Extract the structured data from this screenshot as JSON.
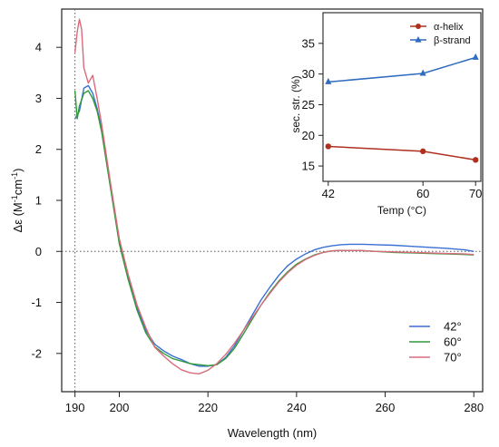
{
  "chart_data": [
    {
      "type": "line",
      "xlabel": "Wavelength (nm)",
      "ylabel_main": "Δε (M",
      "ylabel_sup1": "-1",
      "ylabel_mid": "cm",
      "ylabel_sup2": "-1",
      "ylabel_end": ")",
      "xlim": [
        187,
        282
      ],
      "ylim": [
        -2.75,
        4.75
      ],
      "xticks": [
        190,
        200,
        220,
        240,
        260,
        280
      ],
      "xtick_labels": [
        "190",
        "200",
        "220",
        "240",
        "260",
        "280"
      ],
      "yticks": [
        -2,
        -1,
        0,
        1,
        2,
        3,
        4
      ],
      "ytick_labels": [
        "-2",
        "-1",
        "0",
        "1",
        "2",
        "3",
        "4"
      ],
      "reference_lines": {
        "y": 0,
        "x": 190
      },
      "legend_position": "bottom-right",
      "series": [
        {
          "name": "42°",
          "color": "#3b6fd4",
          "points": [
            [
              190,
              2.6
            ],
            [
              191,
              2.75
            ],
            [
              192,
              3.2
            ],
            [
              193,
              3.25
            ],
            [
              194,
              3.1
            ],
            [
              195,
              2.8
            ],
            [
              196,
              2.4
            ],
            [
              198,
              1.3
            ],
            [
              200,
              0.2
            ],
            [
              202,
              -0.5
            ],
            [
              204,
              -1.1
            ],
            [
              206,
              -1.55
            ],
            [
              208,
              -1.82
            ],
            [
              210,
              -1.95
            ],
            [
              212,
              -2.05
            ],
            [
              214,
              -2.12
            ],
            [
              216,
              -2.2
            ],
            [
              218,
              -2.25
            ],
            [
              220,
              -2.25
            ],
            [
              222,
              -2.22
            ],
            [
              224,
              -2.08
            ],
            [
              226,
              -1.85
            ],
            [
              228,
              -1.55
            ],
            [
              230,
              -1.25
            ],
            [
              232,
              -0.95
            ],
            [
              234,
              -0.7
            ],
            [
              236,
              -0.47
            ],
            [
              238,
              -0.28
            ],
            [
              240,
              -0.15
            ],
            [
              242,
              -0.05
            ],
            [
              244,
              0.03
            ],
            [
              246,
              0.08
            ],
            [
              248,
              0.11
            ],
            [
              250,
              0.13
            ],
            [
              252,
              0.14
            ],
            [
              255,
              0.14
            ],
            [
              258,
              0.13
            ],
            [
              262,
              0.12
            ],
            [
              266,
              0.1
            ],
            [
              270,
              0.08
            ],
            [
              274,
              0.06
            ],
            [
              278,
              0.03
            ],
            [
              280,
              0.0
            ]
          ]
        },
        {
          "name": "60°",
          "color": "#2e9a3a",
          "points": [
            [
              190,
              3.15
            ],
            [
              190.5,
              2.6
            ],
            [
              191,
              2.85
            ],
            [
              192,
              3.1
            ],
            [
              193,
              3.15
            ],
            [
              194,
              3.0
            ],
            [
              195,
              2.75
            ],
            [
              196,
              2.35
            ],
            [
              198,
              1.25
            ],
            [
              200,
              0.15
            ],
            [
              202,
              -0.55
            ],
            [
              204,
              -1.15
            ],
            [
              206,
              -1.6
            ],
            [
              208,
              -1.87
            ],
            [
              210,
              -2.0
            ],
            [
              212,
              -2.1
            ],
            [
              214,
              -2.15
            ],
            [
              216,
              -2.2
            ],
            [
              218,
              -2.22
            ],
            [
              220,
              -2.24
            ],
            [
              222,
              -2.22
            ],
            [
              224,
              -2.1
            ],
            [
              226,
              -1.9
            ],
            [
              228,
              -1.62
            ],
            [
              230,
              -1.33
            ],
            [
              232,
              -1.05
            ],
            [
              234,
              -0.8
            ],
            [
              236,
              -0.58
            ],
            [
              238,
              -0.4
            ],
            [
              240,
              -0.25
            ],
            [
              242,
              -0.15
            ],
            [
              244,
              -0.07
            ],
            [
              246,
              -0.02
            ],
            [
              248,
              0.01
            ],
            [
              250,
              0.02
            ],
            [
              254,
              0.02
            ],
            [
              258,
              0.0
            ],
            [
              262,
              -0.02
            ],
            [
              266,
              -0.03
            ],
            [
              270,
              -0.04
            ],
            [
              274,
              -0.05
            ],
            [
              278,
              -0.06
            ],
            [
              280,
              -0.07
            ]
          ]
        },
        {
          "name": "70°",
          "color": "#d96b7a",
          "points": [
            [
              190,
              3.9
            ],
            [
              190.5,
              4.3
            ],
            [
              191,
              4.55
            ],
            [
              191.5,
              4.35
            ],
            [
              192,
              3.6
            ],
            [
              193,
              3.3
            ],
            [
              194,
              3.45
            ],
            [
              195,
              3.0
            ],
            [
              196,
              2.5
            ],
            [
              198,
              1.35
            ],
            [
              200,
              0.25
            ],
            [
              202,
              -0.45
            ],
            [
              204,
              -1.05
            ],
            [
              206,
              -1.5
            ],
            [
              208,
              -1.88
            ],
            [
              210,
              -2.05
            ],
            [
              212,
              -2.2
            ],
            [
              214,
              -2.32
            ],
            [
              216,
              -2.38
            ],
            [
              218,
              -2.4
            ],
            [
              220,
              -2.33
            ],
            [
              222,
              -2.2
            ],
            [
              224,
              -2.02
            ],
            [
              226,
              -1.8
            ],
            [
              228,
              -1.55
            ],
            [
              230,
              -1.3
            ],
            [
              232,
              -1.05
            ],
            [
              234,
              -0.82
            ],
            [
              236,
              -0.6
            ],
            [
              238,
              -0.42
            ],
            [
              240,
              -0.27
            ],
            [
              242,
              -0.16
            ],
            [
              244,
              -0.08
            ],
            [
              246,
              -0.02
            ],
            [
              248,
              0.01
            ],
            [
              250,
              0.02
            ],
            [
              254,
              0.02
            ],
            [
              258,
              0.0
            ],
            [
              262,
              -0.01
            ],
            [
              266,
              -0.02
            ],
            [
              270,
              -0.03
            ],
            [
              274,
              -0.04
            ],
            [
              278,
              -0.05
            ],
            [
              280,
              -0.06
            ]
          ]
        }
      ]
    },
    {
      "type": "line",
      "xlabel": "Temp (°C)",
      "ylabel": "sec. str. (%)",
      "xlim": [
        41,
        71
      ],
      "ylim": [
        12.5,
        40
      ],
      "xticks": [
        42,
        60,
        70
      ],
      "xtick_labels": [
        "42",
        "60",
        "70"
      ],
      "yticks": [
        15,
        20,
        25,
        30,
        35
      ],
      "ytick_labels": [
        "15",
        "20",
        "25",
        "30",
        "35"
      ],
      "legend_position": "top-right",
      "series": [
        {
          "name": "α-helix",
          "color": "#b03020",
          "marker": "circle",
          "x": [
            42,
            60,
            70
          ],
          "values": [
            18.2,
            17.4,
            16.0
          ]
        },
        {
          "name": "β-strand",
          "color": "#2f6bbf",
          "marker": "triangle",
          "x": [
            42,
            60,
            70
          ],
          "values": [
            28.7,
            30.1,
            32.7
          ]
        }
      ]
    }
  ]
}
